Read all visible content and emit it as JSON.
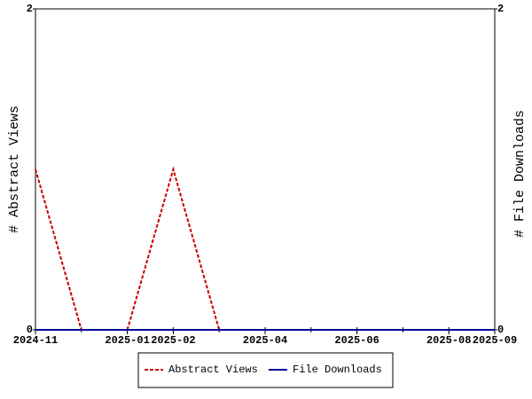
{
  "chart_data": {
    "type": "line",
    "x": [
      "2024-11",
      "2024-12",
      "2025-01",
      "2025-02",
      "2025-03",
      "2025-04",
      "2025-05",
      "2025-06",
      "2025-07",
      "2025-08",
      "2025-09"
    ],
    "series": [
      {
        "name": "Abstract Views",
        "color": "#cc0000",
        "dash": true,
        "values": [
          1,
          0,
          0,
          1,
          0,
          0,
          0,
          0,
          0,
          0,
          0
        ]
      },
      {
        "name": "File Downloads",
        "color": "#000099",
        "axis": "y2",
        "values": [
          0,
          0,
          0,
          0,
          0,
          0,
          0,
          0,
          0,
          0,
          0
        ]
      }
    ],
    "ylabel": "# Abstract Views",
    "y2label": "# File Downloads",
    "xlim": [
      "2024-11",
      "2025-09"
    ],
    "xticks": [
      "2024-11",
      "2025-01",
      "2025-02",
      "2025-04",
      "2025-06",
      "2025-08",
      "2025-09"
    ],
    "ylim": [
      0,
      2
    ],
    "yticks": [
      0,
      2
    ],
    "y2lim": [
      0,
      2
    ],
    "y2ticks": [
      0,
      2
    ],
    "legend": "bottom"
  }
}
